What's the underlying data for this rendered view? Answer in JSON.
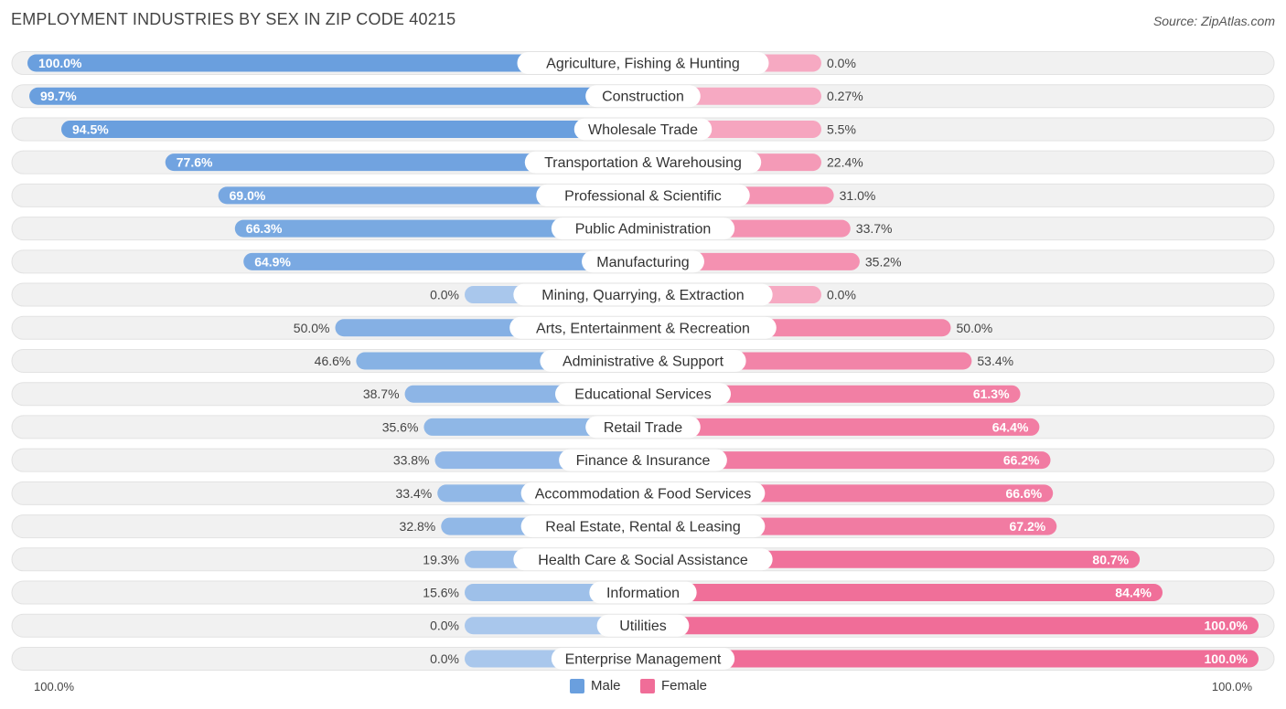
{
  "title": "EMPLOYMENT INDUSTRIES BY SEX IN ZIP CODE 40215",
  "source": "Source: ZipAtlas.com",
  "colors": {
    "male_strong": "#6a9fde",
    "male_light": "#a9c7ec",
    "female_strong": "#f06d98",
    "female_light": "#f6a9c2",
    "track": "#f1f1f1"
  },
  "legend": {
    "male": "Male",
    "female": "Female"
  },
  "axis": {
    "left": "100.0%",
    "right": "100.0%"
  },
  "chart_data": {
    "type": "bar",
    "orientation": "horizontal-diverging",
    "title": "EMPLOYMENT INDUSTRIES BY SEX IN ZIP CODE 40215",
    "categories": [
      "Agriculture, Fishing & Hunting",
      "Construction",
      "Wholesale Trade",
      "Transportation & Warehousing",
      "Professional & Scientific",
      "Public Administration",
      "Manufacturing",
      "Mining, Quarrying, & Extraction",
      "Arts, Entertainment & Recreation",
      "Administrative & Support",
      "Educational Services",
      "Retail Trade",
      "Finance & Insurance",
      "Accommodation & Food Services",
      "Real Estate, Rental & Leasing",
      "Health Care & Social Assistance",
      "Information",
      "Utilities",
      "Enterprise Management"
    ],
    "series": [
      {
        "name": "Male",
        "values": [
          100.0,
          99.7,
          94.5,
          77.6,
          69.0,
          66.3,
          64.9,
          0.0,
          50.0,
          46.6,
          38.7,
          35.6,
          33.8,
          33.4,
          32.8,
          19.3,
          15.6,
          0.0,
          0.0
        ],
        "labels": [
          "100.0%",
          "99.7%",
          "94.5%",
          "77.6%",
          "69.0%",
          "66.3%",
          "64.9%",
          "0.0%",
          "50.0%",
          "46.6%",
          "38.7%",
          "35.6%",
          "33.8%",
          "33.4%",
          "32.8%",
          "19.3%",
          "15.6%",
          "0.0%",
          "0.0%"
        ]
      },
      {
        "name": "Female",
        "values": [
          0.0,
          0.27,
          5.5,
          22.4,
          31.0,
          33.7,
          35.2,
          0.0,
          50.0,
          53.4,
          61.3,
          64.4,
          66.2,
          66.6,
          67.2,
          80.7,
          84.4,
          100.0,
          100.0
        ],
        "labels": [
          "0.0%",
          "0.27%",
          "5.5%",
          "22.4%",
          "31.0%",
          "33.7%",
          "35.2%",
          "0.0%",
          "50.0%",
          "53.4%",
          "61.3%",
          "64.4%",
          "66.2%",
          "66.6%",
          "67.2%",
          "80.7%",
          "84.4%",
          "100.0%",
          "100.0%"
        ]
      }
    ],
    "xlim": [
      -100,
      100
    ],
    "legend_position": "bottom-center"
  }
}
